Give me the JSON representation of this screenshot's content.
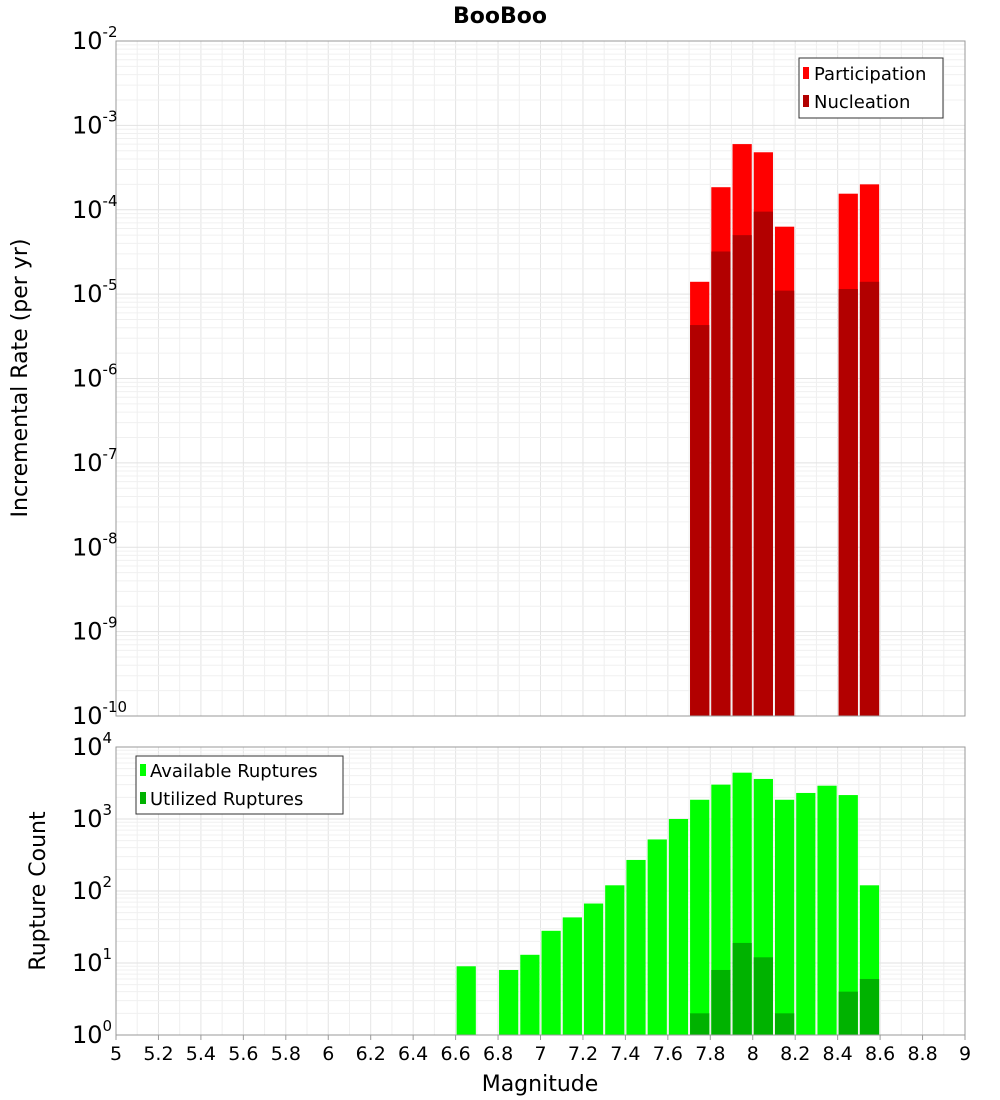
{
  "chart_data": [
    {
      "type": "bar",
      "title": "BooBoo",
      "ylabel": "Incremental Rate (per yr)",
      "xlabel": "",
      "x_range": [
        5,
        9
      ],
      "ylim": [
        1e-10,
        0.01
      ],
      "y_scale": "log",
      "y_tick_exponents": [
        "-2",
        "-3",
        "-4",
        "-5",
        "-6",
        "-7",
        "-8",
        "-9",
        "-10"
      ],
      "grid": true,
      "legend_position": "top-right",
      "x": [
        7.75,
        7.85,
        7.95,
        8.05,
        8.15,
        8.45,
        8.55
      ],
      "series": [
        {
          "name": "Participation",
          "color": "#ff0000",
          "values": [
            1.4e-05,
            0.000185,
            0.0006,
            0.00048,
            6.3e-05,
            0.000155,
            0.0002
          ]
        },
        {
          "name": "Nucleation",
          "color": "#b20000",
          "values": [
            4.3e-06,
            3.2e-05,
            5e-05,
            9.5e-05,
            1.1e-05,
            1.15e-05,
            1.4e-05
          ]
        }
      ]
    },
    {
      "type": "bar",
      "title": "",
      "ylabel": "Rupture Count",
      "xlabel": "Magnitude",
      "x_range": [
        5,
        9
      ],
      "x_ticks": [
        "5",
        "5.2",
        "5.4",
        "5.6",
        "5.8",
        "6",
        "6.2",
        "6.4",
        "6.6",
        "6.8",
        "7",
        "7.2",
        "7.4",
        "7.6",
        "7.8",
        "8",
        "8.2",
        "8.4",
        "8.6",
        "8.8",
        "9"
      ],
      "ylim": [
        1,
        10000
      ],
      "y_scale": "log",
      "y_tick_exponents": [
        "4",
        "3",
        "2",
        "1",
        "0"
      ],
      "grid": true,
      "legend_position": "top-left",
      "x": [
        6.65,
        6.85,
        6.95,
        7.05,
        7.15,
        7.25,
        7.35,
        7.45,
        7.55,
        7.65,
        7.75,
        7.85,
        7.95,
        8.05,
        8.15,
        8.25,
        8.35,
        8.45,
        8.55
      ],
      "series": [
        {
          "name": "Available Ruptures",
          "color": "#00ff00",
          "values": [
            9,
            8,
            13,
            28,
            43,
            67,
            120,
            270,
            520,
            1000,
            1850,
            3000,
            4400,
            3600,
            1850,
            2300,
            2900,
            2150,
            120
          ]
        },
        {
          "name": "Utilized Ruptures",
          "color": "#00b200",
          "values": [
            0,
            0,
            0,
            0,
            0,
            0,
            0,
            0,
            0,
            0,
            2,
            8,
            19,
            12,
            2,
            0,
            0,
            4,
            6
          ]
        }
      ]
    }
  ]
}
